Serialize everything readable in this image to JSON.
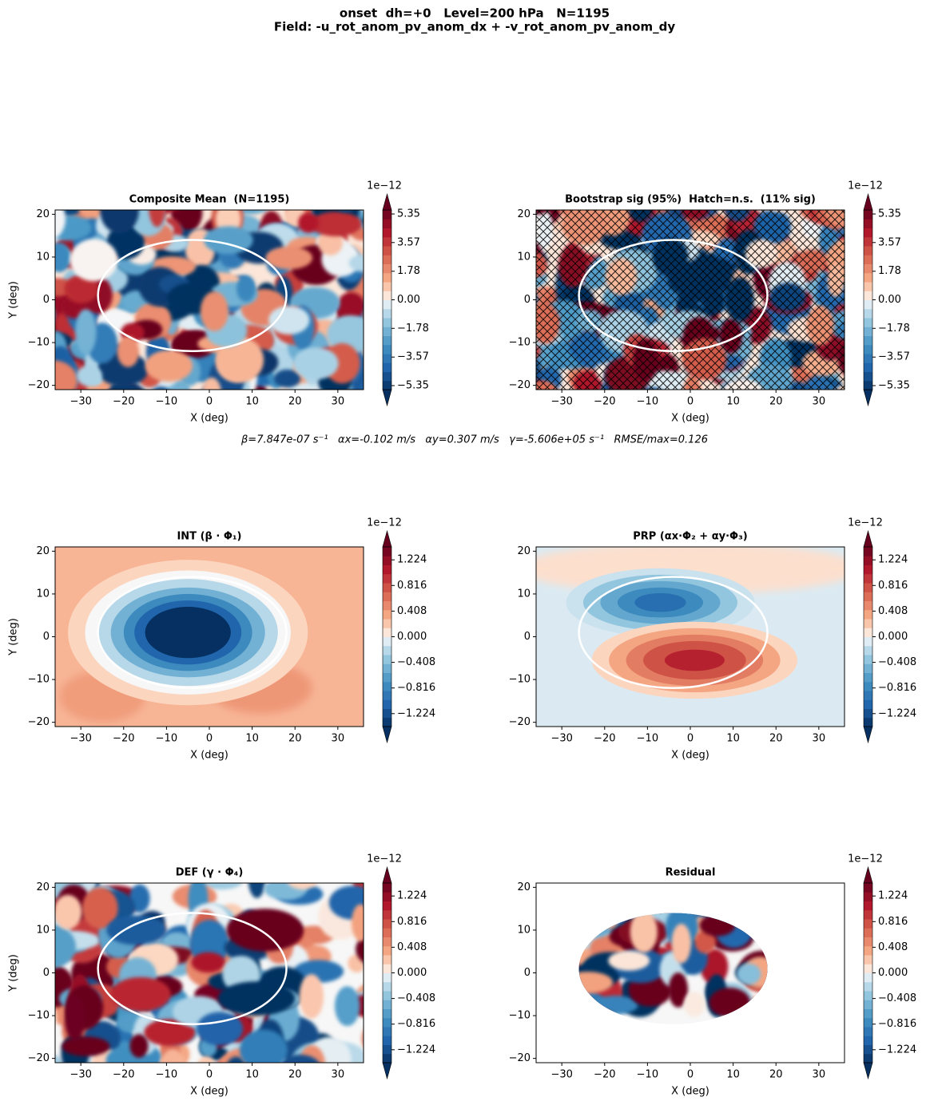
{
  "figure": {
    "title_lines": [
      "onset  dh=+0   Level=200 hPa   N=1195",
      "Field: -u_rot_anom_pv_anom_dx + -v_rot_anom_pv_anom_dy"
    ],
    "annotation": "β=7.847e-07 s⁻¹   αx=-0.102 m/s   αy=0.307 m/s   γ=-5.606e+05 s⁻¹   RMSE/max=0.126"
  },
  "chart_data": [
    {
      "type": "contourf",
      "title": "Composite Mean  (N=1195)",
      "xlabel": "X (deg)",
      "ylabel": "Y (deg)",
      "xlim": [
        -36,
        36
      ],
      "ylim": [
        -21,
        21
      ],
      "xticks": [
        {
          "value": -30,
          "label": "−30"
        },
        {
          "value": -20,
          "label": "−20"
        },
        {
          "value": -10,
          "label": "−10"
        },
        0,
        10,
        20,
        30
      ],
      "yticks": [
        {
          "value": -20,
          "label": "−20"
        },
        {
          "value": -10,
          "label": "−10"
        },
        0,
        10,
        20
      ],
      "colorbar": {
        "offset_label": "1e−12",
        "lim": [
          -5.6,
          5.6
        ],
        "ticks": [
          {
            "value": -5.35,
            "label": "−5.35"
          },
          {
            "value": -3.57,
            "label": "−3.57"
          },
          {
            "value": -1.78,
            "label": "−1.78"
          },
          {
            "value": 0,
            "label": "0.00"
          },
          1.78,
          3.57,
          5.35
        ]
      }
    },
    {
      "type": "contourf",
      "title": "Bootstrap sig (95%)  Hatch=n.s.  (11% sig)",
      "xlabel": "X (deg)",
      "xlim": [
        -36,
        36
      ],
      "ylim": [
        -21,
        21
      ],
      "xticks": [
        {
          "value": -30,
          "label": "−30"
        },
        {
          "value": -20,
          "label": "−20"
        },
        {
          "value": -10,
          "label": "−10"
        },
        0,
        10,
        20,
        30
      ],
      "yticks": [
        {
          "value": -20,
          "label": "−20"
        },
        {
          "value": -10,
          "label": "−10"
        },
        0,
        10,
        20
      ],
      "colorbar": {
        "offset_label": "1e−12",
        "lim": [
          -5.6,
          5.6
        ],
        "ticks": [
          {
            "value": -5.35,
            "label": "−5.35"
          },
          {
            "value": -3.57,
            "label": "−3.57"
          },
          {
            "value": -1.78,
            "label": "−1.78"
          },
          {
            "value": 0,
            "label": "0.00"
          },
          1.78,
          3.57,
          5.35
        ]
      }
    },
    {
      "type": "contourf",
      "title": "INT (β · Φ₁)",
      "xlabel": "X (deg)",
      "ylabel": "Y (deg)",
      "xlim": [
        -36,
        36
      ],
      "ylim": [
        -21,
        21
      ],
      "xticks": [
        {
          "value": -30,
          "label": "−30"
        },
        {
          "value": -20,
          "label": "−20"
        },
        {
          "value": -10,
          "label": "−10"
        },
        0,
        10,
        20,
        30
      ],
      "yticks": [
        {
          "value": -20,
          "label": "−20"
        },
        {
          "value": -10,
          "label": "−10"
        },
        0,
        10,
        20
      ],
      "colorbar": {
        "offset_label": "1e−12",
        "lim": [
          -1.43,
          1.43
        ],
        "ticks": [
          {
            "value": -1.224,
            "label": "−1.224"
          },
          {
            "value": -0.816,
            "label": "−0.816"
          },
          {
            "value": -0.408,
            "label": "−0.408"
          },
          {
            "value": 0,
            "label": "0.000"
          },
          0.408,
          0.816,
          1.224
        ]
      }
    },
    {
      "type": "contourf",
      "title": "PRP (αx·Φ₂ + αy·Φ₃)",
      "xlabel": "X (deg)",
      "xlim": [
        -36,
        36
      ],
      "ylim": [
        -21,
        21
      ],
      "xticks": [
        {
          "value": -30,
          "label": "−30"
        },
        {
          "value": -20,
          "label": "−20"
        },
        {
          "value": -10,
          "label": "−10"
        },
        0,
        10,
        20,
        30
      ],
      "yticks": [
        {
          "value": -20,
          "label": "−20"
        },
        {
          "value": -10,
          "label": "−10"
        },
        0,
        10,
        20
      ],
      "colorbar": {
        "offset_label": "1e−12",
        "lim": [
          -1.43,
          1.43
        ],
        "ticks": [
          {
            "value": -1.224,
            "label": "−1.224"
          },
          {
            "value": -0.816,
            "label": "−0.816"
          },
          {
            "value": -0.408,
            "label": "−0.408"
          },
          {
            "value": 0,
            "label": "0.000"
          },
          0.408,
          0.816,
          1.224
        ]
      }
    },
    {
      "type": "contourf",
      "title": "DEF (γ · Φ₄)",
      "xlabel": "X (deg)",
      "ylabel": "Y (deg)",
      "xlim": [
        -36,
        36
      ],
      "ylim": [
        -21,
        21
      ],
      "xticks": [
        {
          "value": -30,
          "label": "−30"
        },
        {
          "value": -20,
          "label": "−20"
        },
        {
          "value": -10,
          "label": "−10"
        },
        0,
        10,
        20,
        30
      ],
      "yticks": [
        {
          "value": -20,
          "label": "−20"
        },
        {
          "value": -10,
          "label": "−10"
        },
        0,
        10,
        20
      ],
      "colorbar": {
        "offset_label": "1e−12",
        "lim": [
          -1.43,
          1.43
        ],
        "ticks": [
          {
            "value": -1.224,
            "label": "−1.224"
          },
          {
            "value": -0.816,
            "label": "−0.816"
          },
          {
            "value": -0.408,
            "label": "−0.408"
          },
          {
            "value": 0,
            "label": "0.000"
          },
          0.408,
          0.816,
          1.224
        ]
      }
    },
    {
      "type": "contourf",
      "title": "Residual",
      "xlabel": "X (deg)",
      "xlim": [
        -36,
        36
      ],
      "ylim": [
        -21,
        21
      ],
      "xticks": [
        {
          "value": -30,
          "label": "−30"
        },
        {
          "value": -20,
          "label": "−20"
        },
        {
          "value": -10,
          "label": "−10"
        },
        0,
        10,
        20,
        30
      ],
      "yticks": [
        {
          "value": -20,
          "label": "−20"
        },
        {
          "value": -10,
          "label": "−10"
        },
        0,
        10,
        20
      ],
      "colorbar": {
        "offset_label": "1e−12",
        "lim": [
          -1.43,
          1.43
        ],
        "ticks": [
          {
            "value": -1.224,
            "label": "−1.224"
          },
          {
            "value": -0.816,
            "label": "−0.816"
          },
          {
            "value": -0.408,
            "label": "−0.408"
          },
          {
            "value": 0,
            "label": "0.000"
          },
          0.408,
          0.816,
          1.224
        ]
      }
    }
  ]
}
